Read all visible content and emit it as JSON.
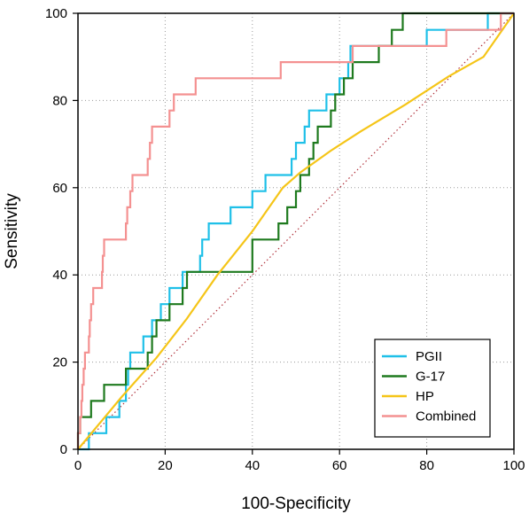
{
  "chart_data": {
    "type": "line",
    "title": "",
    "xlabel": "100-Specificity",
    "ylabel": "Sensitivity",
    "xlim": [
      0,
      100
    ],
    "ylim": [
      0,
      100
    ],
    "x_ticks": [
      0,
      20,
      40,
      60,
      80,
      100
    ],
    "y_ticks": [
      0,
      20,
      40,
      60,
      80,
      100
    ],
    "grid": true,
    "legend_position": "bottom-right",
    "diagonal_reference": true,
    "series": [
      {
        "name": "PGII",
        "color": "#1fc0e8",
        "points": [
          [
            0,
            0
          ],
          [
            2.5,
            0
          ],
          [
            2.5,
            3.7
          ],
          [
            6.5,
            3.7
          ],
          [
            6.5,
            7.4
          ],
          [
            9.5,
            7.4
          ],
          [
            9.5,
            11.1
          ],
          [
            11,
            11.1
          ],
          [
            11,
            14.8
          ],
          [
            11.5,
            14.8
          ],
          [
            11.5,
            18.5
          ],
          [
            12,
            18.5
          ],
          [
            12,
            22.2
          ],
          [
            15,
            22.2
          ],
          [
            15,
            25.9
          ],
          [
            17,
            25.9
          ],
          [
            17,
            29.6
          ],
          [
            19,
            29.6
          ],
          [
            19,
            33.3
          ],
          [
            21,
            33.3
          ],
          [
            21,
            37
          ],
          [
            24,
            37
          ],
          [
            24,
            40.7
          ],
          [
            28,
            40.7
          ],
          [
            28,
            44.4
          ],
          [
            28.5,
            44.4
          ],
          [
            28.5,
            48.1
          ],
          [
            30,
            48.1
          ],
          [
            30,
            51.8
          ],
          [
            35,
            51.8
          ],
          [
            35,
            55.5
          ],
          [
            40,
            55.5
          ],
          [
            40,
            59.2
          ],
          [
            43,
            59.2
          ],
          [
            43,
            62.9
          ],
          [
            49,
            62.9
          ],
          [
            49,
            66.6
          ],
          [
            50,
            66.6
          ],
          [
            50,
            70.3
          ],
          [
            52,
            70.3
          ],
          [
            52,
            74
          ],
          [
            53,
            74
          ],
          [
            53,
            77.7
          ],
          [
            57,
            77.7
          ],
          [
            57,
            81.4
          ],
          [
            60,
            81.4
          ],
          [
            60,
            85.1
          ],
          [
            62,
            85.1
          ],
          [
            62,
            88.8
          ],
          [
            62.5,
            88.8
          ],
          [
            62.5,
            92.5
          ],
          [
            80,
            92.5
          ],
          [
            80,
            96.2
          ],
          [
            94,
            96.2
          ],
          [
            94,
            100
          ],
          [
            100,
            100
          ]
        ]
      },
      {
        "name": "G-17",
        "color": "#1e7a1e",
        "points": [
          [
            0,
            0
          ],
          [
            0,
            3.7
          ],
          [
            0.5,
            3.7
          ],
          [
            0.5,
            7.4
          ],
          [
            3,
            7.4
          ],
          [
            3,
            11.1
          ],
          [
            6,
            11.1
          ],
          [
            6,
            14.8
          ],
          [
            11,
            14.8
          ],
          [
            11,
            18.5
          ],
          [
            16,
            18.5
          ],
          [
            16,
            22.2
          ],
          [
            17,
            22.2
          ],
          [
            17,
            25.9
          ],
          [
            18,
            25.9
          ],
          [
            18,
            29.6
          ],
          [
            21,
            29.6
          ],
          [
            21,
            33.3
          ],
          [
            24,
            33.3
          ],
          [
            24,
            37
          ],
          [
            25,
            37
          ],
          [
            25,
            40.7
          ],
          [
            40,
            40.7
          ],
          [
            40,
            44.4
          ],
          [
            40,
            44.4
          ],
          [
            40,
            48.1
          ],
          [
            46,
            48.1
          ],
          [
            46,
            51.8
          ],
          [
            48,
            51.8
          ],
          [
            48,
            55.5
          ],
          [
            50,
            55.5
          ],
          [
            50,
            59.2
          ],
          [
            51,
            59.2
          ],
          [
            51,
            62.9
          ],
          [
            53,
            62.9
          ],
          [
            53,
            66.6
          ],
          [
            54,
            66.6
          ],
          [
            54,
            70.3
          ],
          [
            55,
            70.3
          ],
          [
            55,
            74
          ],
          [
            58,
            74
          ],
          [
            58,
            77.7
          ],
          [
            59,
            77.7
          ],
          [
            59,
            81.4
          ],
          [
            61,
            81.4
          ],
          [
            61,
            85.1
          ],
          [
            63,
            85.1
          ],
          [
            63,
            88.8
          ],
          [
            69,
            88.8
          ],
          [
            69,
            92.5
          ],
          [
            72,
            92.5
          ],
          [
            72,
            96.2
          ],
          [
            74.5,
            96.2
          ],
          [
            74.5,
            100
          ],
          [
            100,
            100
          ]
        ]
      },
      {
        "name": "HP",
        "color": "#f5c518",
        "points": [
          [
            0,
            0
          ],
          [
            10,
            12
          ],
          [
            18,
            21
          ],
          [
            25,
            30
          ],
          [
            32,
            40
          ],
          [
            40,
            50
          ],
          [
            47,
            60
          ],
          [
            51,
            63.5
          ],
          [
            58,
            68.5
          ],
          [
            65,
            73
          ],
          [
            75,
            79
          ],
          [
            85,
            85.5
          ],
          [
            93,
            90
          ],
          [
            100,
            100
          ]
        ]
      },
      {
        "name": "Combined",
        "color": "#f49191",
        "points": [
          [
            0,
            0
          ],
          [
            0,
            3.7
          ],
          [
            0.5,
            3.7
          ],
          [
            0.5,
            7.4
          ],
          [
            0.8,
            7.4
          ],
          [
            0.8,
            11.1
          ],
          [
            1,
            11.1
          ],
          [
            1,
            14.8
          ],
          [
            1.3,
            14.8
          ],
          [
            1.3,
            18.5
          ],
          [
            1.6,
            18.5
          ],
          [
            1.6,
            22.2
          ],
          [
            2.5,
            22.2
          ],
          [
            2.5,
            25.9
          ],
          [
            2.7,
            25.9
          ],
          [
            2.7,
            29.6
          ],
          [
            3,
            29.6
          ],
          [
            3,
            33.3
          ],
          [
            3.5,
            33.3
          ],
          [
            3.5,
            37
          ],
          [
            5.5,
            37
          ],
          [
            5.5,
            40.7
          ],
          [
            5.7,
            40.7
          ],
          [
            5.7,
            44.4
          ],
          [
            6,
            44.4
          ],
          [
            6,
            48.1
          ],
          [
            11,
            48.1
          ],
          [
            11,
            51.8
          ],
          [
            11.3,
            51.8
          ],
          [
            11.3,
            55.5
          ],
          [
            12,
            55.5
          ],
          [
            12,
            59.2
          ],
          [
            12.5,
            59.2
          ],
          [
            12.5,
            62.9
          ],
          [
            16,
            62.9
          ],
          [
            16,
            66.6
          ],
          [
            16.5,
            66.6
          ],
          [
            16.5,
            70.3
          ],
          [
            17,
            70.3
          ],
          [
            17,
            74
          ],
          [
            21,
            74
          ],
          [
            21,
            77.7
          ],
          [
            22,
            77.7
          ],
          [
            22,
            81.4
          ],
          [
            27,
            81.4
          ],
          [
            27,
            85.1
          ],
          [
            46.5,
            85.1
          ],
          [
            46.5,
            88.8
          ],
          [
            63,
            88.8
          ],
          [
            63,
            92.5
          ],
          [
            84.5,
            92.5
          ],
          [
            84.5,
            96.2
          ],
          [
            97,
            96.2
          ],
          [
            97,
            100
          ],
          [
            100,
            100
          ]
        ]
      }
    ]
  }
}
